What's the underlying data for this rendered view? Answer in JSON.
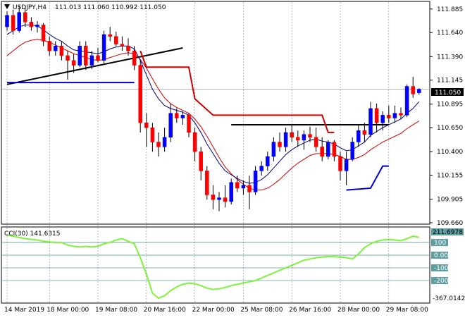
{
  "header": {
    "symbol": "USDJPY,H4",
    "ohlc": "111.013 111.060 110.992 111.050"
  },
  "indicator": {
    "label": "CCI(30) 141.6315",
    "max_label": "211.6978",
    "min_label": "-367.0142"
  },
  "current_price_label": "111.050",
  "colors": {
    "bull_candle": "#0000ff",
    "bear_candle": "#ff0000",
    "wick": "#000000",
    "fast_ma": "#000080",
    "slow_ma": "#cc0000",
    "red_step": "#cc0000",
    "blue_step": "#0000cc",
    "trendline": "#000000",
    "cci_line": "#7ef33c",
    "cci_levels": "#5f9ea0"
  },
  "chart_data": [
    {
      "type": "candlestick",
      "name": "USDJPY,H4",
      "y_ticks": [
        "111.885",
        "111.640",
        "111.390",
        "111.145",
        "110.895",
        "110.650",
        "110.400",
        "110.155",
        "109.905",
        "109.660"
      ],
      "ylim": [
        109.66,
        111.95
      ],
      "x_ticks": [
        "14 Mar 2019",
        "18 Mar 00:00",
        "19 Mar 08:00",
        "20 Mar 16:00",
        "22 Mar 00:00",
        "25 Mar 08:00",
        "26 Mar 16:00",
        "28 Mar 00:00",
        "29 Mar 08:00"
      ],
      "x_tick_index": [
        0,
        7,
        15,
        23,
        31,
        39,
        47,
        55,
        63
      ],
      "current_price": 111.05,
      "candles": [
        {
          "o": 111.7,
          "h": 111.86,
          "l": 111.66,
          "c": 111.82
        },
        {
          "o": 111.82,
          "h": 111.88,
          "l": 111.62,
          "c": 111.66
        },
        {
          "o": 111.66,
          "h": 111.92,
          "l": 111.64,
          "c": 111.85
        },
        {
          "o": 111.85,
          "h": 111.9,
          "l": 111.7,
          "c": 111.75
        },
        {
          "o": 111.75,
          "h": 111.8,
          "l": 111.66,
          "c": 111.7
        },
        {
          "o": 111.7,
          "h": 111.76,
          "l": 111.64,
          "c": 111.72
        },
        {
          "o": 111.72,
          "h": 111.74,
          "l": 111.5,
          "c": 111.55
        },
        {
          "o": 111.55,
          "h": 111.6,
          "l": 111.4,
          "c": 111.45
        },
        {
          "o": 111.45,
          "h": 111.55,
          "l": 111.4,
          "c": 111.5
        },
        {
          "o": 111.5,
          "h": 111.55,
          "l": 111.35,
          "c": 111.4
        },
        {
          "o": 111.4,
          "h": 111.45,
          "l": 111.15,
          "c": 111.35
        },
        {
          "o": 111.35,
          "h": 111.42,
          "l": 111.22,
          "c": 111.3
        },
        {
          "o": 111.3,
          "h": 111.55,
          "l": 111.28,
          "c": 111.5
        },
        {
          "o": 111.5,
          "h": 111.55,
          "l": 111.25,
          "c": 111.3
        },
        {
          "o": 111.3,
          "h": 111.45,
          "l": 111.26,
          "c": 111.4
        },
        {
          "o": 111.4,
          "h": 111.48,
          "l": 111.33,
          "c": 111.35
        },
        {
          "o": 111.35,
          "h": 111.66,
          "l": 111.32,
          "c": 111.62
        },
        {
          "o": 111.62,
          "h": 111.7,
          "l": 111.55,
          "c": 111.6
        },
        {
          "o": 111.6,
          "h": 111.65,
          "l": 111.5,
          "c": 111.52
        },
        {
          "o": 111.52,
          "h": 111.6,
          "l": 111.45,
          "c": 111.5
        },
        {
          "o": 111.5,
          "h": 111.58,
          "l": 111.4,
          "c": 111.45
        },
        {
          "o": 111.45,
          "h": 111.5,
          "l": 111.25,
          "c": 111.3
        },
        {
          "o": 111.3,
          "h": 111.35,
          "l": 110.6,
          "c": 110.7
        },
        {
          "o": 110.7,
          "h": 110.8,
          "l": 110.45,
          "c": 110.65
        },
        {
          "o": 110.65,
          "h": 110.7,
          "l": 110.4,
          "c": 110.5
        },
        {
          "o": 110.5,
          "h": 110.6,
          "l": 110.35,
          "c": 110.45
        },
        {
          "o": 110.45,
          "h": 110.65,
          "l": 110.4,
          "c": 110.55
        },
        {
          "o": 110.55,
          "h": 110.9,
          "l": 110.5,
          "c": 110.8
        },
        {
          "o": 110.8,
          "h": 110.85,
          "l": 110.7,
          "c": 110.75
        },
        {
          "o": 110.75,
          "h": 110.82,
          "l": 110.68,
          "c": 110.78
        },
        {
          "o": 110.78,
          "h": 110.8,
          "l": 110.55,
          "c": 110.6
        },
        {
          "o": 110.6,
          "h": 110.65,
          "l": 110.3,
          "c": 110.4
        },
        {
          "o": 110.4,
          "h": 110.45,
          "l": 110.1,
          "c": 110.2
        },
        {
          "o": 110.2,
          "h": 110.25,
          "l": 109.9,
          "c": 109.95
        },
        {
          "o": 109.95,
          "h": 110.05,
          "l": 109.8,
          "c": 109.9
        },
        {
          "o": 109.9,
          "h": 109.98,
          "l": 109.78,
          "c": 109.92
        },
        {
          "o": 109.92,
          "h": 110.05,
          "l": 109.82,
          "c": 109.88
        },
        {
          "o": 109.88,
          "h": 110.12,
          "l": 109.85,
          "c": 110.08
        },
        {
          "o": 110.08,
          "h": 110.15,
          "l": 109.98,
          "c": 110.02
        },
        {
          "o": 110.02,
          "h": 110.1,
          "l": 109.95,
          "c": 110.05
        },
        {
          "o": 110.05,
          "h": 110.15,
          "l": 109.8,
          "c": 109.98
        },
        {
          "o": 109.98,
          "h": 110.25,
          "l": 109.95,
          "c": 110.2
        },
        {
          "o": 110.2,
          "h": 110.3,
          "l": 110.15,
          "c": 110.25
        },
        {
          "o": 110.25,
          "h": 110.4,
          "l": 110.2,
          "c": 110.35
        },
        {
          "o": 110.35,
          "h": 110.55,
          "l": 110.3,
          "c": 110.5
        },
        {
          "o": 110.5,
          "h": 110.6,
          "l": 110.4,
          "c": 110.45
        },
        {
          "o": 110.45,
          "h": 110.65,
          "l": 110.4,
          "c": 110.6
        },
        {
          "o": 110.6,
          "h": 110.68,
          "l": 110.5,
          "c": 110.55
        },
        {
          "o": 110.55,
          "h": 110.62,
          "l": 110.45,
          "c": 110.52
        },
        {
          "o": 110.52,
          "h": 110.62,
          "l": 110.42,
          "c": 110.58
        },
        {
          "o": 110.58,
          "h": 110.66,
          "l": 110.5,
          "c": 110.55
        },
        {
          "o": 110.55,
          "h": 110.65,
          "l": 110.4,
          "c": 110.45
        },
        {
          "o": 110.45,
          "h": 110.55,
          "l": 110.3,
          "c": 110.35
        },
        {
          "o": 110.35,
          "h": 110.52,
          "l": 110.32,
          "c": 110.5
        },
        {
          "o": 110.5,
          "h": 110.52,
          "l": 110.3,
          "c": 110.35
        },
        {
          "o": 110.35,
          "h": 110.4,
          "l": 110.1,
          "c": 110.2
        },
        {
          "o": 110.2,
          "h": 110.4,
          "l": 110.05,
          "c": 110.32
        },
        {
          "o": 110.32,
          "h": 110.55,
          "l": 110.3,
          "c": 110.5
        },
        {
          "o": 110.5,
          "h": 110.68,
          "l": 110.45,
          "c": 110.62
        },
        {
          "o": 110.62,
          "h": 110.7,
          "l": 110.5,
          "c": 110.58
        },
        {
          "o": 110.58,
          "h": 110.92,
          "l": 110.55,
          "c": 110.85
        },
        {
          "o": 110.85,
          "h": 110.9,
          "l": 110.6,
          "c": 110.7
        },
        {
          "o": 110.7,
          "h": 110.82,
          "l": 110.62,
          "c": 110.78
        },
        {
          "o": 110.78,
          "h": 110.88,
          "l": 110.7,
          "c": 110.75
        },
        {
          "o": 110.75,
          "h": 110.88,
          "l": 110.7,
          "c": 110.8
        },
        {
          "o": 110.8,
          "h": 110.86,
          "l": 110.74,
          "c": 110.78
        },
        {
          "o": 110.78,
          "h": 111.1,
          "l": 110.76,
          "c": 111.08
        },
        {
          "o": 111.08,
          "h": 111.18,
          "l": 110.96,
          "c": 111.0
        },
        {
          "o": 111.013,
          "h": 111.06,
          "l": 110.992,
          "c": 111.05
        }
      ],
      "fast_ma": [
        111.62,
        111.66,
        111.7,
        111.72,
        111.72,
        111.71,
        111.67,
        111.62,
        111.58,
        111.55,
        111.5,
        111.46,
        111.45,
        111.44,
        111.43,
        111.42,
        111.44,
        111.47,
        111.49,
        111.5,
        111.5,
        111.47,
        111.35,
        111.2,
        111.05,
        110.95,
        110.88,
        110.85,
        110.83,
        110.81,
        110.78,
        110.7,
        110.6,
        110.48,
        110.38,
        110.28,
        110.2,
        110.16,
        110.12,
        110.09,
        110.07,
        110.08,
        110.11,
        110.16,
        110.23,
        110.3,
        110.37,
        110.42,
        110.46,
        110.49,
        110.52,
        110.53,
        110.51,
        110.5,
        110.48,
        110.44,
        110.41,
        110.42,
        110.46,
        110.5,
        110.57,
        110.61,
        110.65,
        110.68,
        110.71,
        110.74,
        110.8,
        110.85,
        110.92
      ],
      "slow_ma": [
        111.4,
        111.45,
        111.5,
        111.54,
        111.56,
        111.57,
        111.56,
        111.54,
        111.51,
        111.48,
        111.45,
        111.42,
        111.4,
        111.38,
        111.36,
        111.35,
        111.36,
        111.38,
        111.4,
        111.42,
        111.43,
        111.42,
        111.36,
        111.27,
        111.16,
        111.05,
        110.96,
        110.9,
        110.86,
        110.83,
        110.8,
        110.74,
        110.66,
        110.56,
        110.45,
        110.34,
        110.24,
        110.17,
        110.11,
        110.06,
        110.02,
        110.0,
        110.0,
        110.02,
        110.06,
        110.11,
        110.17,
        110.23,
        110.28,
        110.32,
        110.36,
        110.38,
        110.38,
        110.38,
        110.37,
        110.35,
        110.32,
        110.32,
        110.34,
        110.37,
        110.42,
        110.46,
        110.5,
        110.53,
        110.56,
        110.59,
        110.64,
        110.68,
        110.72
      ],
      "red_step": [
        {
          "i": 22,
          "v": 111.45
        },
        {
          "i": 23,
          "v": 111.28
        },
        {
          "i": 30,
          "v": 111.28
        },
        {
          "i": 31,
          "v": 110.95
        },
        {
          "i": 34,
          "v": 110.78
        },
        {
          "i": 52,
          "v": 110.78
        },
        {
          "i": 53,
          "v": 110.6
        },
        {
          "i": 54,
          "v": 110.6
        }
      ],
      "blue_step": [
        {
          "i": 0,
          "v": 111.12
        },
        {
          "i": 21,
          "v": 111.12
        }
      ],
      "blue_step_2": [
        {
          "i": 56,
          "v": 110.0
        },
        {
          "i": 60,
          "v": 110.02
        },
        {
          "i": 62,
          "v": 110.25
        },
        {
          "i": 63,
          "v": 110.25
        }
      ],
      "trend_line": [
        {
          "i": 0,
          "v": 111.1
        },
        {
          "i": 29,
          "v": 111.48
        }
      ],
      "horizontal_line": [
        {
          "i": 37,
          "v": 110.68
        },
        {
          "i": 63,
          "v": 110.68
        }
      ]
    },
    {
      "type": "line",
      "name": "CCI(30)",
      "ylim": [
        -367.0142,
        211.6978
      ],
      "levels": [
        100,
        0,
        -100,
        -200
      ],
      "level_labels": [
        "100",
        "0.00",
        "-100",
        "-200"
      ],
      "values": [
        160,
        150,
        140,
        130,
        125,
        120,
        110,
        105,
        100,
        100,
        80,
        70,
        65,
        70,
        65,
        70,
        90,
        100,
        120,
        130,
        110,
        90,
        -20,
        -150,
        -300,
        -340,
        -320,
        -280,
        -250,
        -230,
        -220,
        -225,
        -240,
        -260,
        -270,
        -265,
        -255,
        -240,
        -230,
        -220,
        -210,
        -200,
        -180,
        -160,
        -140,
        -120,
        -100,
        -80,
        -60,
        -40,
        -30,
        -20,
        -15,
        -10,
        -12,
        -15,
        -20,
        -30,
        10,
        60,
        90,
        110,
        120,
        125,
        120,
        115,
        130,
        150,
        141.63
      ]
    }
  ]
}
